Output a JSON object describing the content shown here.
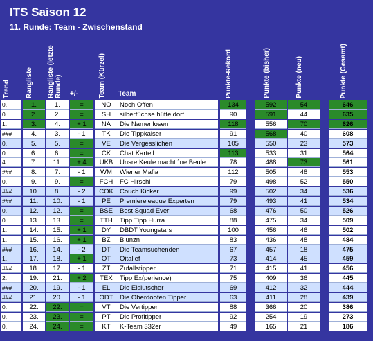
{
  "header": {
    "title": "ITS Saison 12",
    "subtitle": "11. Runde: Team - Zwischenstand"
  },
  "table": {
    "columns": [
      "Trend",
      "Rangliste",
      "Rangliste (letzte Runde)",
      "+/-",
      "Team (Kürzel)",
      "Team",
      "Punkte-Rekord",
      "Punkte (bisher)",
      "Punkte (neu)",
      "Punkte (Gesamt)"
    ],
    "rows": [
      [
        "0.",
        "1.",
        "1.",
        "=",
        "NO",
        "Noch Offen",
        134,
        592,
        54,
        646
      ],
      [
        "0.",
        "2.",
        "2.",
        "=",
        "SH",
        "silberfüchse hütteldorf",
        90,
        591,
        44,
        635
      ],
      [
        "1.",
        "3.",
        "4.",
        "+ 1",
        "NA",
        "Die Namenlosen",
        118,
        556,
        70,
        626
      ],
      [
        "###",
        "4.",
        "3.",
        "- 1",
        "TK",
        "Die Tippkaiser",
        91,
        568,
        40,
        608
      ],
      [
        "0.",
        "5.",
        "5.",
        "=",
        "VE",
        "Die Vergesslichen",
        105,
        550,
        23,
        573
      ],
      [
        "0.",
        "6.",
        "6.",
        "=",
        "CK",
        "Chat Kartell",
        113,
        533,
        31,
        564
      ],
      [
        "4.",
        "7.",
        "11.",
        "+ 4",
        "UKB",
        "Unsre Keule macht ´ne Beule",
        78,
        488,
        73,
        561
      ],
      [
        "###",
        "8.",
        "7.",
        "- 1",
        "WM",
        "Wiener Mafia",
        112,
        505,
        48,
        553
      ],
      [
        "0.",
        "9.",
        "9.",
        "=",
        "FCH",
        "FC Hirschi",
        79,
        498,
        52,
        550
      ],
      [
        "###",
        "10.",
        "8.",
        "- 2",
        "COK",
        "Couch Kicker",
        99,
        502,
        34,
        536
      ],
      [
        "###",
        "11.",
        "10.",
        "- 1",
        "PE",
        "Premiereleague Experten",
        79,
        493,
        41,
        534
      ],
      [
        "0.",
        "12.",
        "12.",
        "=",
        "BSE",
        "Best Squad Ever",
        68,
        476,
        50,
        526
      ],
      [
        "0.",
        "13.",
        "13.",
        "=",
        "TTH",
        "Tipp Tipp Hurra",
        88,
        475,
        34,
        509
      ],
      [
        "1.",
        "14.",
        "15.",
        "+ 1",
        "DY",
        "DBDT Youngstars",
        100,
        456,
        46,
        502
      ],
      [
        "1.",
        "15.",
        "16.",
        "+ 1",
        "BZ",
        "Blunzn",
        83,
        436,
        48,
        484
      ],
      [
        "###",
        "16.",
        "14.",
        "- 2",
        "DT",
        "Die Teamsuchenden",
        67,
        457,
        18,
        475
      ],
      [
        "1.",
        "17.",
        "18.",
        "+ 1",
        "OT",
        "Oitallef",
        73,
        414,
        45,
        459
      ],
      [
        "###",
        "18.",
        "17.",
        "- 1",
        "ZT",
        "Zufallstipper",
        71,
        415,
        41,
        456
      ],
      [
        "2.",
        "19.",
        "21.",
        "+ 2",
        "TEX",
        "Tipp Ex(perience)",
        75,
        409,
        36,
        445
      ],
      [
        "###",
        "20.",
        "19.",
        "- 1",
        "EL",
        "Die Eislutscher",
        69,
        412,
        32,
        444
      ],
      [
        "###",
        "21.",
        "20.",
        "- 1",
        "ODT",
        "Die Oberdoofen Tipper",
        63,
        411,
        28,
        439
      ],
      [
        "0.",
        "22.",
        "22.",
        "=",
        "VT",
        "Die Vertipper",
        88,
        366,
        20,
        386
      ],
      [
        "0.",
        "23.",
        "23.",
        "=",
        "PT",
        "Die Profitipper",
        92,
        254,
        19,
        273
      ],
      [
        "0.",
        "24.",
        "24.",
        "=",
        "KT",
        "K-Team 332er",
        49,
        165,
        21,
        186
      ]
    ]
  }
}
